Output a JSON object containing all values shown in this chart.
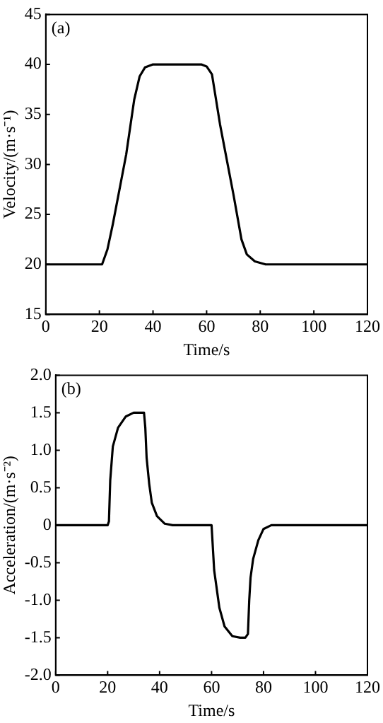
{
  "chart_data": [
    {
      "type": "line",
      "annotations": [
        "(a)"
      ],
      "xlabel": "Time/s",
      "ylabel": "Velocity/(m·s⁻¹)",
      "xlim": [
        0,
        120
      ],
      "xticks": [
        0,
        20,
        40,
        60,
        80,
        100,
        120
      ],
      "ylim": [
        15,
        45
      ],
      "yticks": [
        15,
        20,
        25,
        30,
        35,
        40,
        45
      ],
      "grid": false,
      "legend": false,
      "marker": "none",
      "line_style": "solid",
      "series": [
        {
          "color": "#000000",
          "x": [
            0,
            20,
            21,
            23,
            25,
            30,
            33,
            35,
            37,
            40,
            58,
            60,
            62,
            65,
            70,
            73,
            75,
            78,
            82,
            85,
            90,
            120
          ],
          "values": [
            20,
            20,
            20,
            21.5,
            24,
            31,
            36.5,
            38.8,
            39.7,
            40,
            40,
            39.8,
            39,
            34,
            27,
            22.5,
            21,
            20.3,
            20,
            20,
            20,
            20
          ]
        }
      ]
    },
    {
      "type": "line",
      "annotations": [
        "(b)"
      ],
      "xlabel": "Time/s",
      "ylabel": "Acceleration/(m·s⁻²)",
      "xlim": [
        0,
        120
      ],
      "xticks": [
        0,
        20,
        40,
        60,
        80,
        100,
        120
      ],
      "ylim": [
        -2,
        2
      ],
      "yticks": [
        {
          "value": -2,
          "label": "-2.0"
        },
        -1.5,
        {
          "value": -1,
          "label": "-1.0"
        },
        -0.5,
        0,
        0.5,
        {
          "value": 1,
          "label": "1.0"
        },
        1.5,
        {
          "value": 2,
          "label": "2.0"
        }
      ],
      "grid": false,
      "legend": false,
      "marker": "none",
      "line_style": "solid",
      "series": [
        {
          "color": "#000000",
          "x": [
            0,
            20,
            20.5,
            21,
            22,
            24,
            27,
            30,
            34,
            34.5,
            35,
            36,
            37,
            39,
            42,
            45,
            60,
            60.5,
            61,
            63,
            65,
            68,
            71,
            73,
            74,
            74.5,
            75,
            76,
            78,
            80,
            83,
            120
          ],
          "values": [
            0,
            0,
            0.05,
            0.6,
            1.05,
            1.3,
            1.45,
            1.5,
            1.5,
            1.3,
            0.9,
            0.55,
            0.3,
            0.12,
            0.02,
            0,
            0,
            -0.3,
            -0.6,
            -1.1,
            -1.35,
            -1.48,
            -1.5,
            -1.5,
            -1.45,
            -1,
            -0.7,
            -0.45,
            -0.2,
            -0.05,
            0,
            0
          ]
        }
      ]
    }
  ]
}
